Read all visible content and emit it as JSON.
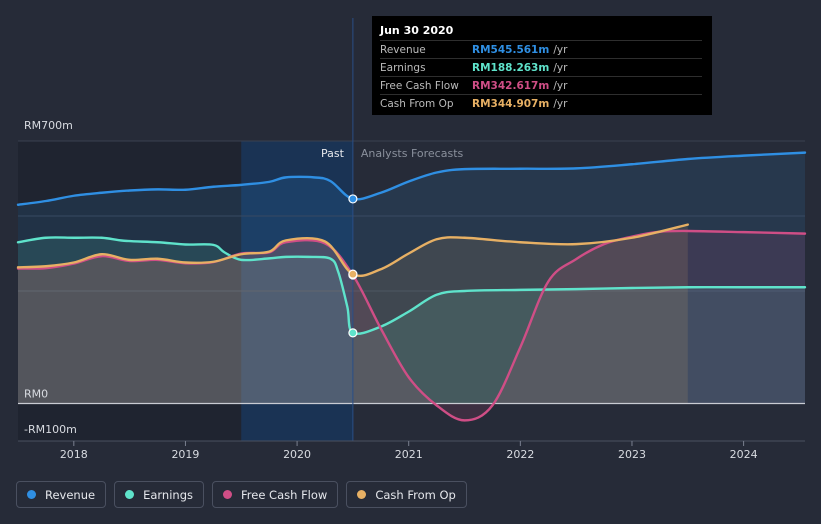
{
  "chart_data": {
    "type": "area",
    "y_axis": {
      "ticks": [
        {
          "value": 700,
          "label": "RM700m"
        },
        {
          "value": 0,
          "label": "RM0"
        },
        {
          "value": -100,
          "label": "-RM100m"
        }
      ],
      "ylim": [
        -100,
        700
      ]
    },
    "x_axis": {
      "ticks": [
        "2018",
        "2019",
        "2020",
        "2021",
        "2022",
        "2023",
        "2024"
      ],
      "xlim": [
        2017.5,
        2024.55
      ]
    },
    "regions": {
      "past_label": "Past",
      "forecast_label": "Analysts Forecasts",
      "divider_x": 2020.5
    },
    "series": [
      {
        "name": "Revenue",
        "color": "#2f8fe3",
        "points": [
          [
            2017.5,
            530
          ],
          [
            2017.75,
            540
          ],
          [
            2018.0,
            554
          ],
          [
            2018.25,
            562
          ],
          [
            2018.5,
            568
          ],
          [
            2018.75,
            571
          ],
          [
            2019.0,
            570
          ],
          [
            2019.25,
            578
          ],
          [
            2019.5,
            583
          ],
          [
            2019.75,
            591
          ],
          [
            2019.9,
            603
          ],
          [
            2020.15,
            603
          ],
          [
            2020.3,
            593
          ],
          [
            2020.5,
            545.561
          ],
          [
            2020.75,
            562
          ],
          [
            2021.0,
            592
          ],
          [
            2021.25,
            616
          ],
          [
            2021.5,
            625
          ],
          [
            2022.0,
            626
          ],
          [
            2022.5,
            627
          ],
          [
            2023.0,
            638
          ],
          [
            2023.5,
            652
          ],
          [
            2024.0,
            661
          ],
          [
            2024.55,
            669
          ]
        ]
      },
      {
        "name": "Earnings",
        "color": "#5fe3cb",
        "points": [
          [
            2017.5,
            430
          ],
          [
            2017.75,
            442
          ],
          [
            2018.0,
            442
          ],
          [
            2018.25,
            442
          ],
          [
            2018.45,
            434
          ],
          [
            2018.75,
            430
          ],
          [
            2019.0,
            424
          ],
          [
            2019.25,
            423
          ],
          [
            2019.35,
            403
          ],
          [
            2019.5,
            383
          ],
          [
            2019.75,
            387
          ],
          [
            2019.9,
            391
          ],
          [
            2020.1,
            391
          ],
          [
            2020.3,
            386
          ],
          [
            2020.37,
            350
          ],
          [
            2020.45,
            258
          ],
          [
            2020.5,
            188.263
          ],
          [
            2020.75,
            205
          ],
          [
            2021.0,
            245
          ],
          [
            2021.25,
            290
          ],
          [
            2021.5,
            300
          ],
          [
            2022.0,
            303
          ],
          [
            2022.5,
            305
          ],
          [
            2023.0,
            308
          ],
          [
            2023.5,
            310
          ],
          [
            2024.0,
            310
          ],
          [
            2024.55,
            310
          ]
        ]
      },
      {
        "name": "Free Cash Flow",
        "color": "#cf4e86",
        "points": [
          [
            2017.5,
            360
          ],
          [
            2017.75,
            361
          ],
          [
            2018.0,
            373
          ],
          [
            2018.25,
            393
          ],
          [
            2018.5,
            380
          ],
          [
            2018.75,
            383
          ],
          [
            2019.0,
            374
          ],
          [
            2019.25,
            377
          ],
          [
            2019.5,
            400
          ],
          [
            2019.75,
            403
          ],
          [
            2019.9,
            430
          ],
          [
            2020.25,
            427
          ],
          [
            2020.5,
            342.617
          ],
          [
            2020.75,
            200
          ],
          [
            2021.0,
            70
          ],
          [
            2021.25,
            -5
          ],
          [
            2021.5,
            -45
          ],
          [
            2021.75,
            -5
          ],
          [
            2022.0,
            150
          ],
          [
            2022.25,
            325
          ],
          [
            2022.5,
            385
          ],
          [
            2022.75,
            425
          ],
          [
            2023.0,
            445
          ],
          [
            2023.25,
            458
          ],
          [
            2023.5,
            460
          ],
          [
            2024.0,
            457
          ],
          [
            2024.55,
            453
          ]
        ]
      },
      {
        "name": "Cash From Op",
        "color": "#e7b064",
        "points": [
          [
            2017.5,
            363
          ],
          [
            2017.75,
            366
          ],
          [
            2018.0,
            376
          ],
          [
            2018.25,
            398
          ],
          [
            2018.5,
            383
          ],
          [
            2018.75,
            386
          ],
          [
            2019.0,
            376
          ],
          [
            2019.25,
            378
          ],
          [
            2019.5,
            398
          ],
          [
            2019.75,
            405
          ],
          [
            2019.9,
            435
          ],
          [
            2020.25,
            432
          ],
          [
            2020.5,
            344.907
          ],
          [
            2020.75,
            358
          ],
          [
            2021.0,
            400
          ],
          [
            2021.25,
            438
          ],
          [
            2021.5,
            442
          ],
          [
            2022.0,
            430
          ],
          [
            2022.5,
            425
          ],
          [
            2023.0,
            442
          ],
          [
            2023.5,
            477
          ]
        ]
      }
    ]
  },
  "tooltip": {
    "date": "Jun 30 2020",
    "rows": [
      {
        "label": "Revenue",
        "value": "RM545.561m",
        "unit": "/yr",
        "color": "#2f8fe3"
      },
      {
        "label": "Earnings",
        "value": "RM188.263m",
        "unit": "/yr",
        "color": "#5fe3cb"
      },
      {
        "label": "Free Cash Flow",
        "value": "RM342.617m",
        "unit": "/yr",
        "color": "#cf4e86"
      },
      {
        "label": "Cash From Op",
        "value": "RM344.907m",
        "unit": "/yr",
        "color": "#e7b064"
      }
    ]
  },
  "legend": [
    {
      "label": "Revenue",
      "color": "#2f8fe3"
    },
    {
      "label": "Earnings",
      "color": "#5fe3cb"
    },
    {
      "label": "Free Cash Flow",
      "color": "#cf4e86"
    },
    {
      "label": "Cash From Op",
      "color": "#e7b064"
    }
  ]
}
